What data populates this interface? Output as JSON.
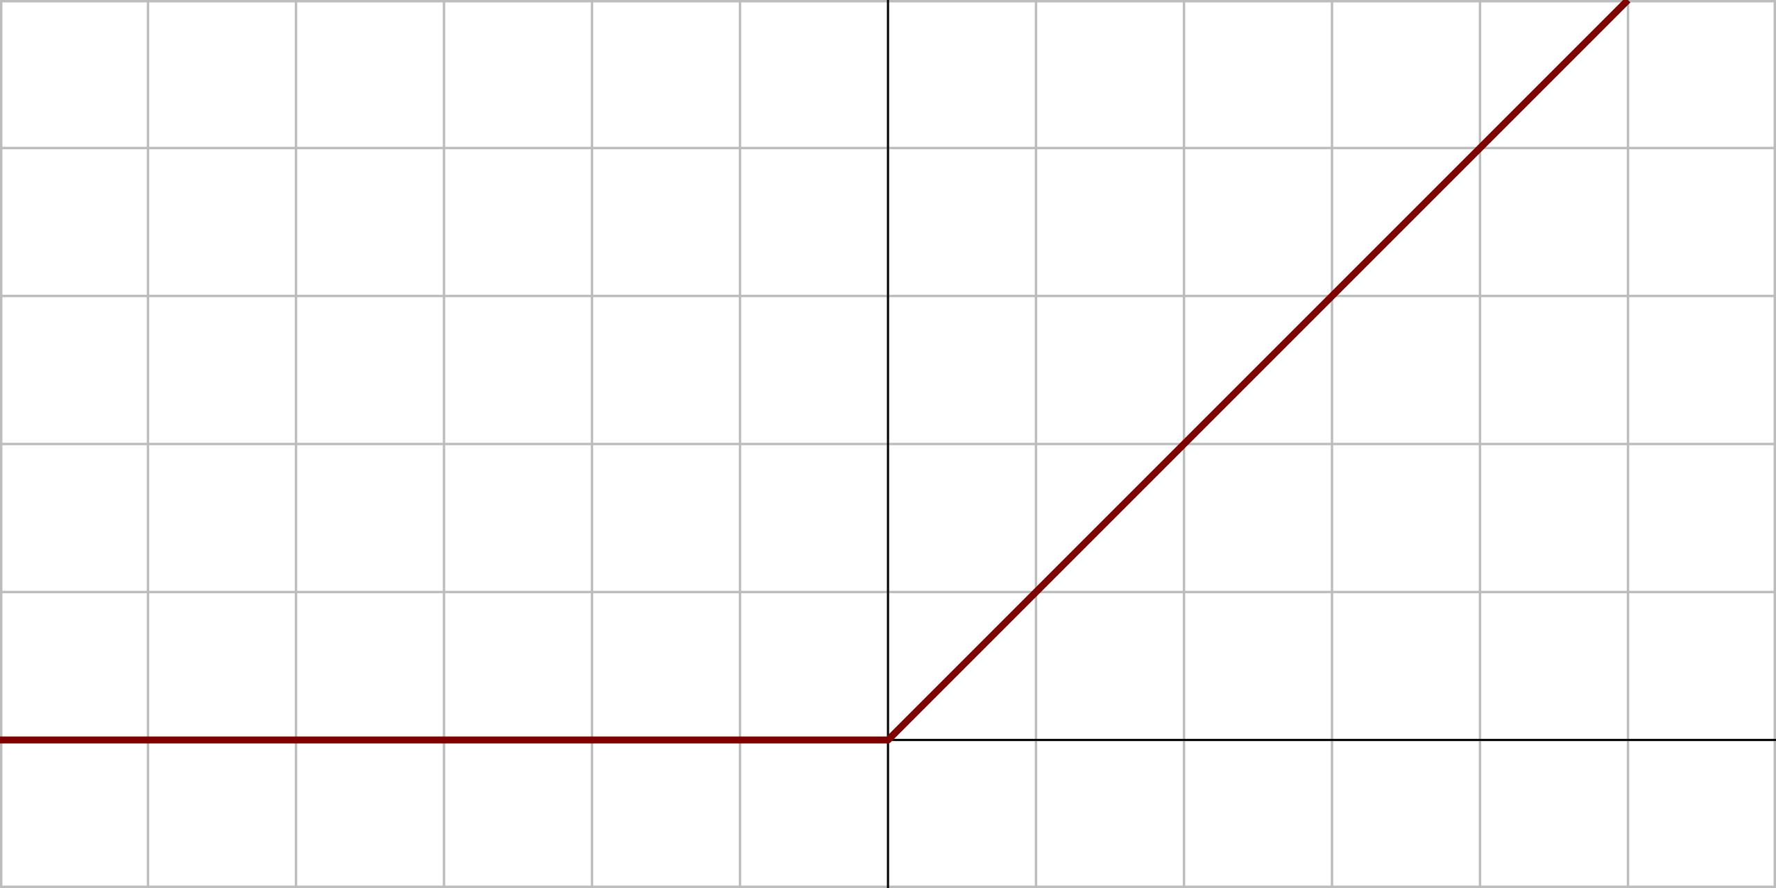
{
  "chart_data": {
    "type": "line",
    "title": "",
    "xlabel": "",
    "ylabel": "",
    "xlim": [
      -6,
      6
    ],
    "ylim": [
      -1,
      5
    ],
    "x_gridlines": [
      -6,
      -5,
      -4,
      -3,
      -2,
      -1,
      0,
      1,
      2,
      3,
      4,
      5,
      6
    ],
    "y_gridlines": [
      -1,
      0,
      1,
      2,
      3,
      4,
      5
    ],
    "grid": true,
    "legend": "none",
    "series": [
      {
        "x": [
          -6,
          0,
          5
        ],
        "y": [
          0,
          0,
          5
        ],
        "color": "#800000"
      }
    ]
  },
  "colors": {
    "background": "#ffffff",
    "grid": "#bdbdbd",
    "axis": "#000000",
    "series": "#800000"
  }
}
